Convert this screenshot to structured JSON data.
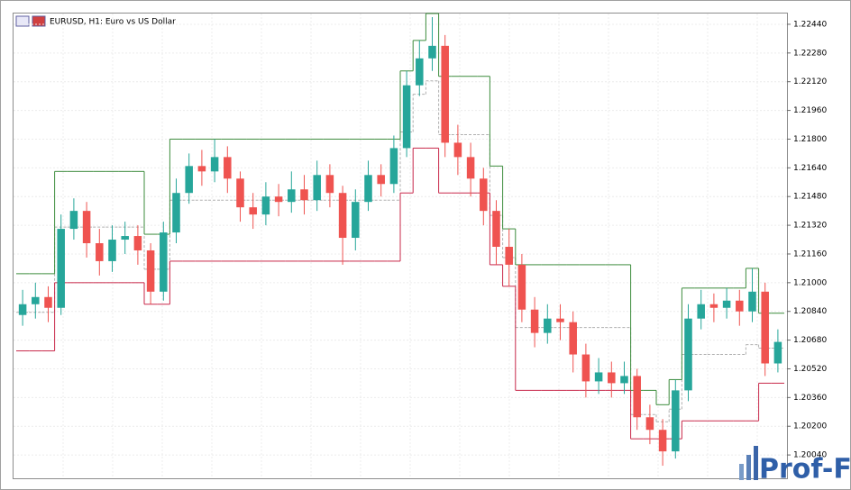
{
  "chart_data": {
    "type": "candlestick",
    "title": "EURUSD, H1:  Euro vs US Dollar",
    "watermark": "Prof-FX",
    "ylim": [
      1.1991,
      1.225
    ],
    "yticks": [
      {
        "value": 1.2244,
        "label": "1.22440"
      },
      {
        "value": 1.2228,
        "label": "1.22280"
      },
      {
        "value": 1.2212,
        "label": "1.22120"
      },
      {
        "value": 1.2196,
        "label": "1.21960"
      },
      {
        "value": 1.218,
        "label": "1.21800"
      },
      {
        "value": 1.2164,
        "label": "1.21640"
      },
      {
        "value": 1.2148,
        "label": "1.21480"
      },
      {
        "value": 1.2132,
        "label": "1.21320"
      },
      {
        "value": 1.2116,
        "label": "1.21160"
      },
      {
        "value": 1.21,
        "label": "1.21000"
      },
      {
        "value": 1.2084,
        "label": "1.20840"
      },
      {
        "value": 1.2068,
        "label": "1.20680"
      },
      {
        "value": 1.2052,
        "label": "1.20520"
      },
      {
        "value": 1.2036,
        "label": "1.20360"
      },
      {
        "value": 1.202,
        "label": "1.20200"
      },
      {
        "value": 1.2004,
        "label": "1.20040"
      }
    ],
    "grid": true,
    "up_color": "#26a69a",
    "down_color": "#ef5350",
    "upper_color": "#3c8c3c",
    "lower_color": "#c8284a",
    "middle_color": "#b0b0b0",
    "open": [
      1.2082,
      1.2088,
      1.2092,
      1.2086,
      1.213,
      1.214,
      1.2122,
      1.2112,
      1.2124,
      1.2126,
      1.2118,
      1.2095,
      1.2128,
      1.215,
      1.2165,
      1.2162,
      1.217,
      1.2158,
      1.2142,
      1.2138,
      1.2148,
      1.2145,
      1.2152,
      1.2146,
      1.216,
      1.215,
      1.2125,
      1.2145,
      1.216,
      1.2155,
      1.2175,
      1.221,
      1.2225,
      1.2232,
      1.2178,
      1.217,
      1.2158,
      1.214,
      1.212,
      1.211,
      1.2085,
      1.2072,
      1.208,
      1.2078,
      1.206,
      1.2045,
      1.205,
      1.2044,
      1.2048,
      1.2025,
      1.2018,
      1.2006,
      1.204,
      1.208,
      1.2088,
      1.2086,
      1.209,
      1.2084,
      1.2095,
      1.2055
    ],
    "high": [
      1.2096,
      1.21,
      1.2098,
      1.2138,
      1.2147,
      1.2145,
      1.213,
      1.2132,
      1.2134,
      1.2132,
      1.2122,
      1.2134,
      1.2158,
      1.2172,
      1.2174,
      1.218,
      1.2176,
      1.2162,
      1.215,
      1.2156,
      1.2155,
      1.2162,
      1.216,
      1.2168,
      1.2166,
      1.2154,
      1.2152,
      1.2168,
      1.2166,
      1.2182,
      1.2218,
      1.2235,
      1.2248,
      1.2238,
      1.2188,
      1.2178,
      1.2164,
      1.2146,
      1.213,
      1.2116,
      1.2092,
      1.2088,
      1.2088,
      1.2084,
      1.2066,
      1.2058,
      1.2056,
      1.2056,
      1.2052,
      1.2032,
      1.2024,
      1.2046,
      1.2088,
      1.2096,
      1.2094,
      1.2097,
      1.2096,
      1.2108,
      1.21,
      1.2074
    ],
    "low": [
      1.2076,
      1.208,
      1.2078,
      1.2082,
      1.2124,
      1.2114,
      1.2104,
      1.2106,
      1.2116,
      1.211,
      1.2088,
      1.209,
      1.2122,
      1.2144,
      1.2154,
      1.2156,
      1.215,
      1.2134,
      1.213,
      1.2132,
      1.2137,
      1.2139,
      1.2138,
      1.214,
      1.2142,
      1.211,
      1.2118,
      1.214,
      1.2148,
      1.215,
      1.217,
      1.2204,
      1.2218,
      1.217,
      1.216,
      1.2148,
      1.2132,
      1.211,
      1.2098,
      1.2078,
      1.2064,
      1.2066,
      1.2068,
      1.205,
      1.2036,
      1.2038,
      1.2036,
      1.2038,
      1.2018,
      1.201,
      1.1998,
      1.2002,
      1.2034,
      1.2074,
      1.2078,
      1.208,
      1.2076,
      1.2078,
      1.2048,
      1.205
    ],
    "close": [
      1.2088,
      1.2092,
      1.2086,
      1.213,
      1.214,
      1.2122,
      1.2112,
      1.2124,
      1.2126,
      1.2118,
      1.2095,
      1.2128,
      1.215,
      1.2165,
      1.2162,
      1.217,
      1.2158,
      1.2142,
      1.2138,
      1.2148,
      1.2145,
      1.2152,
      1.2146,
      1.216,
      1.215,
      1.2125,
      1.2145,
      1.216,
      1.2155,
      1.2175,
      1.221,
      1.2225,
      1.2232,
      1.2178,
      1.217,
      1.2158,
      1.214,
      1.212,
      1.211,
      1.2085,
      1.2072,
      1.208,
      1.2078,
      1.206,
      1.2045,
      1.205,
      1.2044,
      1.2048,
      1.2025,
      1.2018,
      1.2006,
      1.204,
      1.208,
      1.2088,
      1.2086,
      1.209,
      1.2084,
      1.2095,
      1.2055,
      1.2067
    ],
    "upper": [
      1.2105,
      1.2105,
      1.2105,
      1.2162,
      1.2162,
      1.2162,
      1.2162,
      1.2162,
      1.2162,
      1.2162,
      1.2127,
      1.2127,
      1.218,
      1.218,
      1.218,
      1.218,
      1.218,
      1.218,
      1.218,
      1.218,
      1.218,
      1.218,
      1.218,
      1.218,
      1.218,
      1.218,
      1.218,
      1.218,
      1.218,
      1.218,
      1.2218,
      1.2235,
      1.225,
      1.2215,
      1.2215,
      1.2215,
      1.2215,
      1.2165,
      1.213,
      1.211,
      1.211,
      1.211,
      1.211,
      1.211,
      1.211,
      1.211,
      1.211,
      1.211,
      1.204,
      1.204,
      1.2032,
      1.2046,
      1.2097,
      1.2097,
      1.2097,
      1.2097,
      1.2097,
      1.2108,
      1.2083,
      1.2083
    ],
    "lower": [
      1.2062,
      1.2062,
      1.2062,
      1.21,
      1.21,
      1.21,
      1.21,
      1.21,
      1.21,
      1.21,
      1.2088,
      1.2088,
      1.2112,
      1.2112,
      1.2112,
      1.2112,
      1.2112,
      1.2112,
      1.2112,
      1.2112,
      1.2112,
      1.2112,
      1.2112,
      1.2112,
      1.2112,
      1.2112,
      1.2112,
      1.2112,
      1.2112,
      1.2112,
      1.215,
      1.2175,
      1.2175,
      1.215,
      1.215,
      1.215,
      1.215,
      1.211,
      1.2098,
      1.204,
      1.204,
      1.204,
      1.204,
      1.204,
      1.204,
      1.204,
      1.204,
      1.204,
      1.2013,
      1.2013,
      1.2013,
      1.2013,
      1.2023,
      1.2023,
      1.2023,
      1.2023,
      1.2023,
      1.2023,
      1.2044,
      1.2044
    ],
    "middle": [
      1.20835,
      1.20835,
      1.20835,
      1.2131,
      1.2131,
      1.2131,
      1.2131,
      1.2131,
      1.2131,
      1.2131,
      1.21075,
      1.21075,
      1.2146,
      1.2146,
      1.2146,
      1.2146,
      1.2146,
      1.2146,
      1.2146,
      1.2146,
      1.2146,
      1.2146,
      1.2146,
      1.2146,
      1.2146,
      1.2146,
      1.2146,
      1.2146,
      1.2146,
      1.2146,
      1.2184,
      1.2205,
      1.22125,
      1.21825,
      1.21825,
      1.21825,
      1.21825,
      1.21375,
      1.2114,
      1.2075,
      1.2075,
      1.2075,
      1.2075,
      1.2075,
      1.2075,
      1.2075,
      1.2075,
      1.2075,
      1.20265,
      1.20265,
      1.20225,
      1.20295,
      1.206,
      1.206,
      1.206,
      1.206,
      1.206,
      1.20655,
      1.20635,
      1.20635
    ]
  }
}
